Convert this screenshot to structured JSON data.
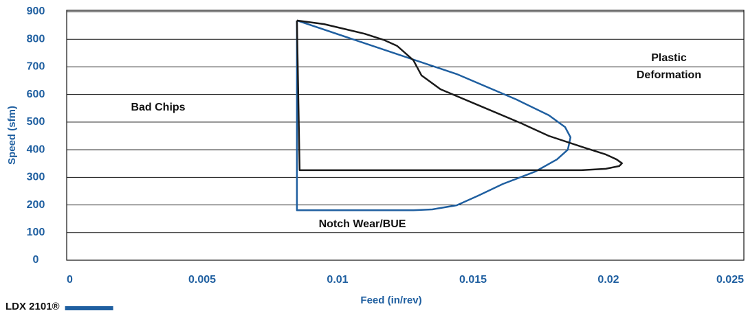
{
  "chart_data": {
    "type": "line",
    "x_label": "Feed (in/rev)",
    "y_label": "Speed (sfm)",
    "xlim": [
      0,
      0.025
    ],
    "xticks": [
      0,
      0.005,
      0.01,
      0.015,
      0.02,
      0.025
    ],
    "ylim": [
      0,
      900
    ],
    "yticks": [
      0,
      100,
      200,
      300,
      400,
      500,
      600,
      700,
      800,
      900
    ],
    "grid": true,
    "annotations": [
      "Bad Chips",
      "Plastic",
      "Deformation",
      "Notch Wear/BUE"
    ],
    "series": [
      {
        "name": "LDX 2101®",
        "color": "#1f5fa0",
        "x": [
          0.0085,
          0.0144,
          0.0166,
          0.0178,
          0.0184,
          0.0186,
          0.0185,
          0.0181,
          0.0173,
          0.0161,
          0.0152,
          0.0144,
          0.0135,
          0.0128,
          0.0085,
          0.0085
        ],
        "values": [
          868,
          674,
          582,
          525,
          482,
          445,
          400,
          365,
          321,
          276,
          234,
          199,
          184,
          181,
          181,
          868
        ]
      },
      {
        "color": "#1a1a1a",
        "x": [
          0.0085,
          0.0095,
          0.011,
          0.0117,
          0.0122,
          0.0128,
          0.0131,
          0.0138,
          0.0153,
          0.0168,
          0.0178,
          0.0191,
          0.0199,
          0.0203,
          0.0205,
          0.0204,
          0.0199,
          0.019,
          0.0178,
          0.0086,
          0.0085
        ],
        "values": [
          868,
          855,
          820,
          798,
          776,
          724,
          669,
          619,
          557,
          495,
          450,
          408,
          383,
          365,
          351,
          341,
          331,
          326,
          326,
          326,
          868
        ]
      }
    ]
  }
}
